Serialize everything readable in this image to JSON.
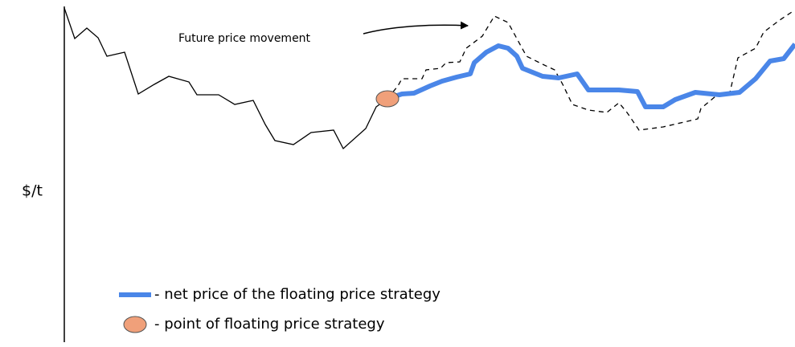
{
  "axis_label": "$/t",
  "annotation": "Future price movement",
  "legend": [
    {
      "label": "- net price of the floating price strategy"
    },
    {
      "label": "- point of floating price strategy"
    }
  ]
}
